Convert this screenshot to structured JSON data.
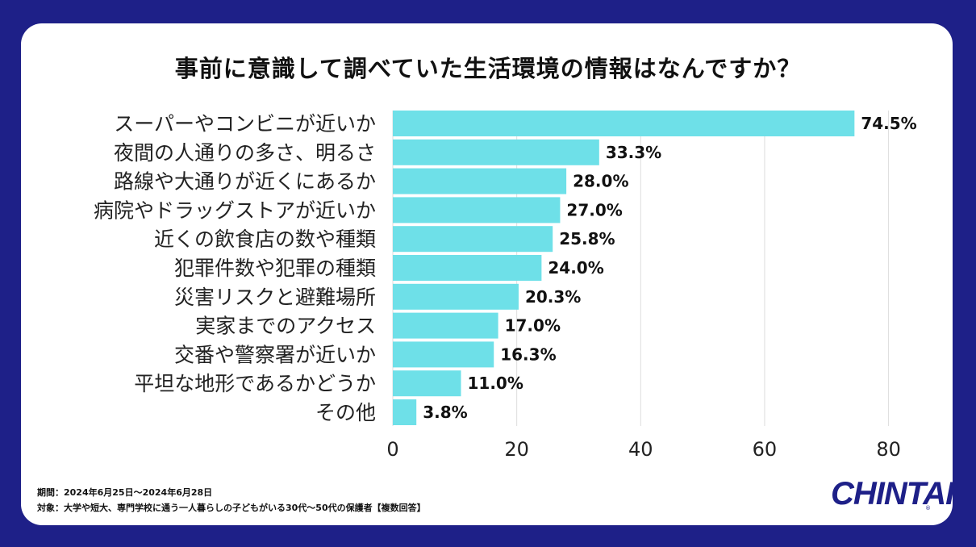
{
  "title": "事前に意識して調べていた生活環境の情報はなんですか？",
  "footnote": {
    "period": "期間：2024年6月25日〜2024年6月28日",
    "target": "対象：大学や短大、専門学校に通う一人暮らしの子どもがいる30代〜50代の保護者【複数回答】"
  },
  "logo": {
    "text": "CHINTAI",
    "mark": "®"
  },
  "colors": {
    "bar": "#6ee0e8",
    "background": "#1e2088",
    "grid": "#dddddd"
  },
  "chart_data": {
    "type": "bar",
    "orientation": "horizontal",
    "title": "事前に意識して調べていた生活環境の情報はなんですか？",
    "categories": [
      "スーパーやコンビニが近いか",
      "夜間の人通りの多さ、明るさ",
      "路線や大通りが近くにあるか",
      "病院やドラッグストアが近いか",
      "近くの飲食店の数や種類",
      "犯罪件数や犯罪の種類",
      "災害リスクと避難場所",
      "実家までのアクセス",
      "交番や警察署が近いか",
      "平坦な地形であるかどうか",
      "その他"
    ],
    "values": [
      74.5,
      33.3,
      28.0,
      27.0,
      25.8,
      24.0,
      20.3,
      17.0,
      16.3,
      11.0,
      3.8
    ],
    "value_labels": [
      "74.5%",
      "33.3%",
      "28.0%",
      "27.0%",
      "25.8%",
      "24.0%",
      "20.3%",
      "17.0%",
      "16.3%",
      "11.0%",
      "3.8%"
    ],
    "xlim": [
      0,
      85
    ],
    "xticks": [
      0,
      20,
      40,
      60,
      80
    ],
    "xlabel": "",
    "ylabel": "",
    "grid": true,
    "legend": "none"
  }
}
